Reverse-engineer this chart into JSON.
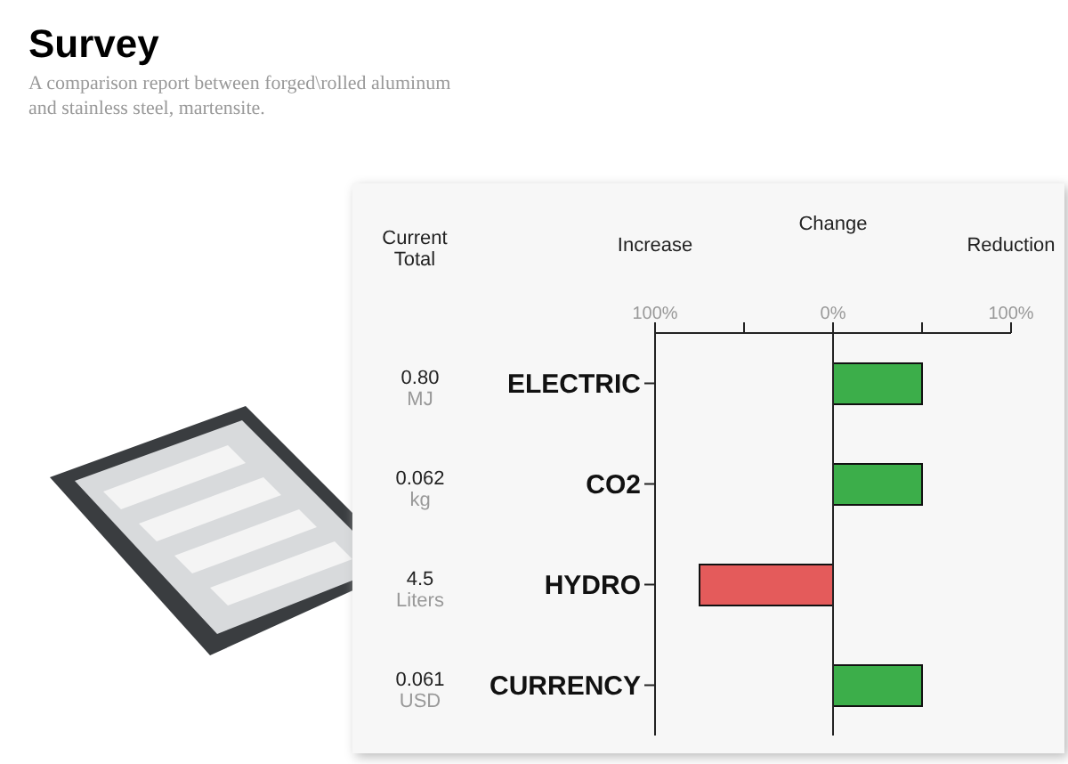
{
  "chart_data": {
    "type": "bar",
    "orientation": "horizontal",
    "title": "Survey",
    "subtitle": "A comparison report between forged\\rolled aluminum and stainless steel, martensite.",
    "xlabel": "Change",
    "categories": [
      "ELECTRIC",
      "CO2",
      "HYDRO",
      "CURRENCY"
    ],
    "values": [
      50,
      50,
      -75,
      50
    ],
    "colors": [
      "#3cae4a",
      "#3cae4a",
      "#e45b5b",
      "#3cae4a"
    ],
    "xlim": [
      -100,
      100
    ],
    "xticks": [
      {
        "value": -100,
        "label": "100%"
      },
      {
        "value": -50,
        "label": null
      },
      {
        "value": 0,
        "label": "0%"
      },
      {
        "value": 50,
        "label": null
      },
      {
        "value": 100,
        "label": "100%"
      }
    ],
    "annotations": [
      "Increase",
      "Reduction",
      "Current\nTotal",
      "0.80\nMJ",
      "0.062\nkg",
      "4.5\nLiters",
      "0.061\nUSD"
    ]
  }
}
